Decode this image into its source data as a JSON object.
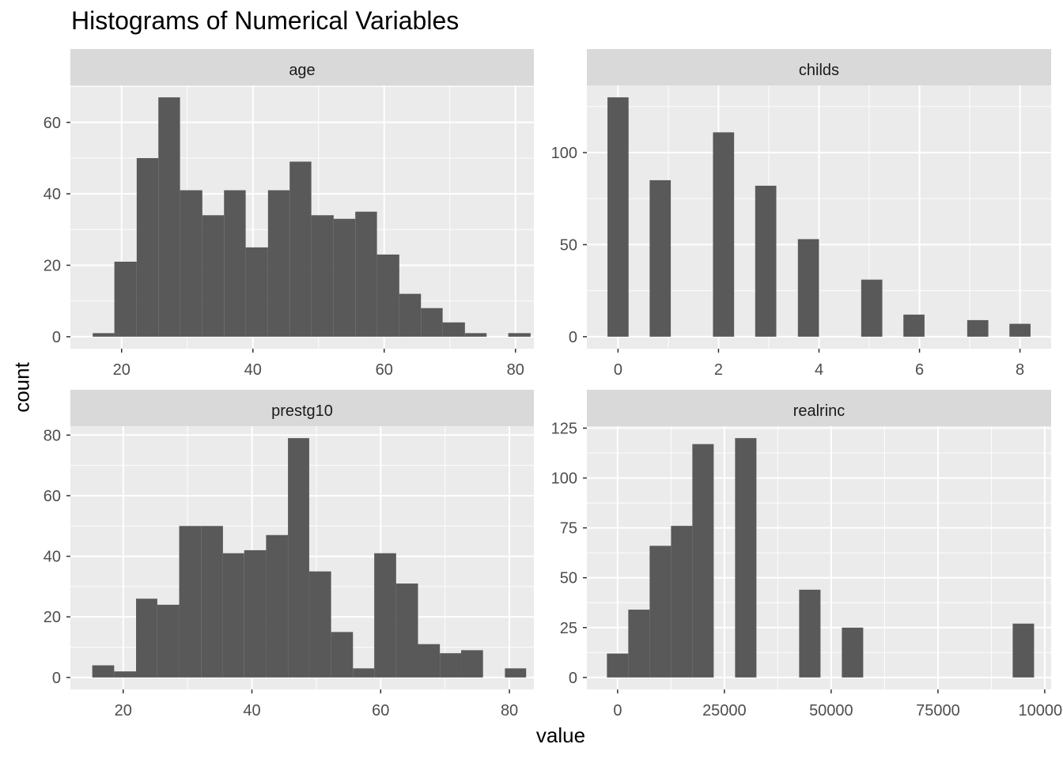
{
  "title": "Histograms of Numerical Variables",
  "xlabel": "value",
  "ylabel": "count",
  "colors": {
    "panel_bg": "#EBEBEB",
    "strip_bg": "#D9D9D9",
    "bar": "#595959",
    "grid": "#FFFFFF",
    "tick_text": "#4D4D4D"
  },
  "chart_data": [
    {
      "type": "bar",
      "facet": "age",
      "x_ticks": [
        20,
        40,
        60,
        80
      ],
      "y_ticks": [
        0,
        20,
        40,
        60
      ],
      "xlim": [
        12.2,
        82.8
      ],
      "ylim": [
        -3.35,
        70.35
      ],
      "bins": [
        {
          "x0": 15.6,
          "x1": 18.9,
          "count": 1
        },
        {
          "x0": 18.9,
          "x1": 22.3,
          "count": 21
        },
        {
          "x0": 22.3,
          "x1": 25.6,
          "count": 50
        },
        {
          "x0": 25.6,
          "x1": 28.9,
          "count": 67
        },
        {
          "x0": 28.9,
          "x1": 32.3,
          "count": 41
        },
        {
          "x0": 32.3,
          "x1": 35.6,
          "count": 34
        },
        {
          "x0": 35.6,
          "x1": 38.9,
          "count": 41
        },
        {
          "x0": 38.9,
          "x1": 42.3,
          "count": 25
        },
        {
          "x0": 42.3,
          "x1": 45.6,
          "count": 41
        },
        {
          "x0": 45.6,
          "x1": 48.9,
          "count": 49
        },
        {
          "x0": 48.9,
          "x1": 52.3,
          "count": 34
        },
        {
          "x0": 52.3,
          "x1": 55.6,
          "count": 33
        },
        {
          "x0": 55.6,
          "x1": 58.9,
          "count": 35
        },
        {
          "x0": 58.9,
          "x1": 62.3,
          "count": 23
        },
        {
          "x0": 62.3,
          "x1": 65.6,
          "count": 12
        },
        {
          "x0": 65.6,
          "x1": 68.9,
          "count": 8
        },
        {
          "x0": 68.9,
          "x1": 72.3,
          "count": 4
        },
        {
          "x0": 72.3,
          "x1": 75.6,
          "count": 1
        },
        {
          "x0": 75.6,
          "x1": 78.9,
          "count": 0
        },
        {
          "x0": 78.9,
          "x1": 82.3,
          "count": 1
        }
      ]
    },
    {
      "type": "bar",
      "facet": "childs",
      "x_ticks": [
        0,
        2,
        4,
        6,
        8
      ],
      "y_ticks": [
        0,
        50,
        100
      ],
      "xlim": [
        -0.62,
        8.62
      ],
      "ylim": [
        -6.5,
        136.5
      ],
      "bins": [
        {
          "x0": -0.21,
          "x1": 0.21,
          "count": 130
        },
        {
          "x0": 0.63,
          "x1": 1.05,
          "count": 85
        },
        {
          "x0": 1.89,
          "x1": 2.31,
          "count": 111
        },
        {
          "x0": 2.73,
          "x1": 3.15,
          "count": 82
        },
        {
          "x0": 3.58,
          "x1": 4.0,
          "count": 53
        },
        {
          "x0": 4.84,
          "x1": 5.26,
          "count": 31
        },
        {
          "x0": 5.68,
          "x1": 6.1,
          "count": 12
        },
        {
          "x0": 6.95,
          "x1": 7.37,
          "count": 9
        },
        {
          "x0": 7.79,
          "x1": 8.21,
          "count": 7
        }
      ]
    },
    {
      "type": "bar",
      "facet": "prestg10",
      "x_ticks": [
        20,
        40,
        60,
        80
      ],
      "y_ticks": [
        0,
        20,
        40,
        60,
        80
      ],
      "xlim": [
        11.8,
        83.8
      ],
      "ylim": [
        -3.95,
        82.95
      ],
      "bins": [
        {
          "x0": 15.2,
          "x1": 18.6,
          "count": 4
        },
        {
          "x0": 18.6,
          "x1": 22.0,
          "count": 2
        },
        {
          "x0": 22.0,
          "x1": 25.3,
          "count": 26
        },
        {
          "x0": 25.3,
          "x1": 28.7,
          "count": 24
        },
        {
          "x0": 28.7,
          "x1": 32.1,
          "count": 50
        },
        {
          "x0": 32.1,
          "x1": 35.5,
          "count": 50
        },
        {
          "x0": 35.5,
          "x1": 38.8,
          "count": 41
        },
        {
          "x0": 38.8,
          "x1": 42.2,
          "count": 42
        },
        {
          "x0": 42.2,
          "x1": 45.6,
          "count": 47
        },
        {
          "x0": 45.6,
          "x1": 48.9,
          "count": 79
        },
        {
          "x0": 48.9,
          "x1": 52.3,
          "count": 35
        },
        {
          "x0": 52.3,
          "x1": 55.7,
          "count": 15
        },
        {
          "x0": 55.7,
          "x1": 59.0,
          "count": 3
        },
        {
          "x0": 59.0,
          "x1": 62.4,
          "count": 41
        },
        {
          "x0": 62.4,
          "x1": 65.8,
          "count": 31
        },
        {
          "x0": 65.8,
          "x1": 69.2,
          "count": 11
        },
        {
          "x0": 69.2,
          "x1": 72.5,
          "count": 8
        },
        {
          "x0": 72.5,
          "x1": 75.9,
          "count": 9
        },
        {
          "x0": 75.9,
          "x1": 79.3,
          "count": 0
        },
        {
          "x0": 79.3,
          "x1": 82.6,
          "count": 3
        }
      ]
    },
    {
      "type": "bar",
      "facet": "realrinc",
      "x_ticks": [
        0,
        25000,
        50000,
        75000,
        100000
      ],
      "y_ticks": [
        0,
        25,
        50,
        75,
        100,
        125
      ],
      "xlim": [
        -7200,
        101500
      ],
      "ylim": [
        -6.0,
        126.0
      ],
      "bins": [
        {
          "x0": -2500,
          "x1": 2500,
          "count": 12
        },
        {
          "x0": 2500,
          "x1": 7500,
          "count": 34
        },
        {
          "x0": 7500,
          "x1": 12500,
          "count": 66
        },
        {
          "x0": 12500,
          "x1": 17500,
          "count": 76
        },
        {
          "x0": 17500,
          "x1": 22500,
          "count": 117
        },
        {
          "x0": 27500,
          "x1": 32500,
          "count": 120
        },
        {
          "x0": 42500,
          "x1": 47500,
          "count": 44
        },
        {
          "x0": 52500,
          "x1": 57500,
          "count": 25
        },
        {
          "x0": 92500,
          "x1": 97500,
          "count": 27
        }
      ]
    }
  ]
}
